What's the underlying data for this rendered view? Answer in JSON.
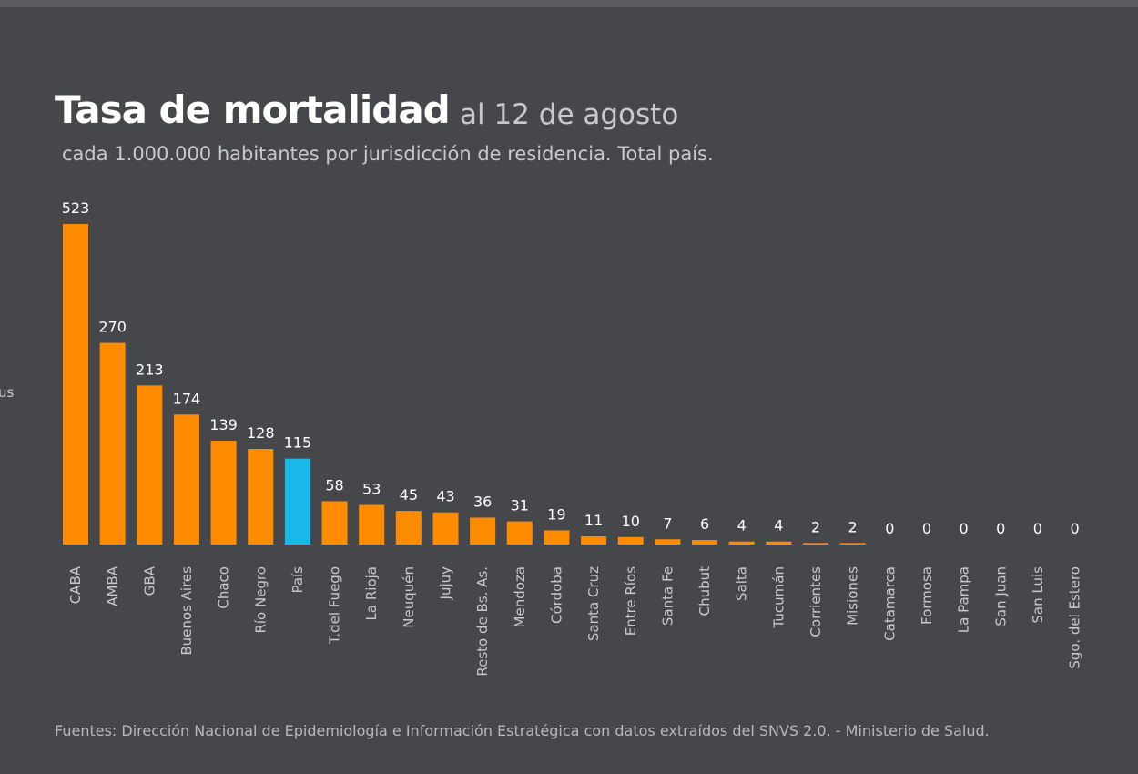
{
  "chart_data": {
    "type": "bar",
    "title": "Tasa de mortalidad",
    "title_date": "al 12 de agosto",
    "subtitle": "cada 1.000.000 habitantes por jurisdicción de residencia. Total país.",
    "cut_off_text": "us",
    "source": "Fuentes: Dirección Nacional de Epidemiología e Información Estratégica con datos extraídos del SNVS 2.0. - Ministerio de Salud.",
    "categories": [
      "CABA",
      "AMBA",
      "GBA",
      "Buenos Aires",
      "Chaco",
      "Río Negro",
      "País",
      "T.del Fuego",
      "La Rioja",
      "Neuquén",
      "Jujuy",
      "Resto de Bs. As.",
      "Mendoza",
      "Córdoba",
      "Santa Cruz",
      "Entre Ríos",
      "Santa Fe",
      "Chubut",
      "Salta",
      "Tucumán",
      "Corrientes",
      "Misiones",
      "Catamarca",
      "Formosa",
      "La Pampa",
      "San Juan",
      "San Luis",
      "Sgo. del Estero"
    ],
    "values": [
      523,
      270,
      213,
      174,
      139,
      128,
      115,
      58,
      53,
      45,
      43,
      36,
      31,
      19,
      11,
      10,
      7,
      6,
      4,
      4,
      2,
      2,
      0,
      0,
      0,
      0,
      0,
      0
    ],
    "highlight_category": "País",
    "colors": {
      "bar": "#ff8c00",
      "highlight": "#1ab7ea",
      "background": "#46474b"
    },
    "grid": false,
    "legend": "none"
  }
}
